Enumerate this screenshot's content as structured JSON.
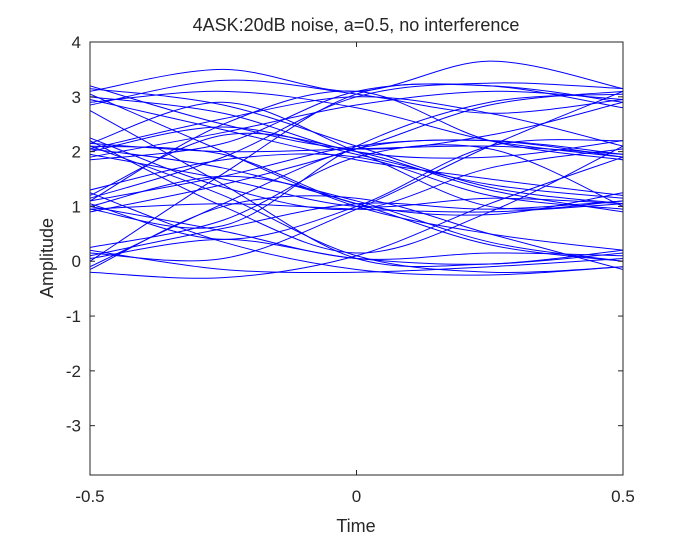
{
  "chart_data": {
    "type": "line",
    "title": "4ASK:20dB noise, a=0.5, no interference",
    "xlabel": "Time",
    "ylabel": "Amplitude",
    "xlim": [
      -0.5,
      0.5
    ],
    "ylim": [
      -3.9,
      4
    ],
    "xticks": [
      -0.5,
      0,
      0.5
    ],
    "xtick_labels": [
      "-0.5",
      "0",
      "0.5"
    ],
    "yticks": [
      -3,
      -2,
      -1,
      0,
      1,
      2,
      3,
      4
    ],
    "ytick_labels": [
      "-3",
      "-2",
      "-1",
      "0",
      "1",
      "2",
      "3",
      "4"
    ],
    "grid": false,
    "legend": "none",
    "line_color": "#0000ff",
    "x": [
      -0.5,
      -0.25,
      0,
      0.25,
      0.5
    ],
    "series": [
      {
        "values": [
          3.15,
          2.85,
          2.1,
          1.35,
          1.05
        ]
      },
      {
        "values": [
          2.9,
          3.1,
          2.8,
          2.2,
          1.9
        ]
      },
      {
        "values": [
          3.05,
          2.0,
          1.0,
          0.5,
          0.2
        ]
      },
      {
        "values": [
          2.85,
          3.3,
          3.05,
          2.7,
          2.95
        ]
      },
      {
        "values": [
          3.2,
          2.5,
          2.05,
          2.3,
          2.9
        ]
      },
      {
        "values": [
          2.75,
          1.4,
          0.05,
          -0.05,
          0.15
        ]
      },
      {
        "values": [
          3.1,
          3.5,
          3.1,
          3.65,
          3.15
        ]
      },
      {
        "values": [
          2.95,
          2.4,
          1.85,
          1.5,
          1.2
        ]
      },
      {
        "values": [
          2.05,
          2.6,
          3.0,
          2.7,
          2.1
        ]
      },
      {
        "values": [
          2.15,
          2.0,
          2.05,
          2.1,
          1.95
        ]
      },
      {
        "values": [
          1.95,
          1.5,
          1.0,
          1.15,
          1.05
        ]
      },
      {
        "values": [
          2.1,
          1.2,
          0.1,
          -0.2,
          -0.1
        ]
      },
      {
        "values": [
          1.9,
          2.35,
          2.85,
          3.1,
          2.95
        ]
      },
      {
        "values": [
          2.2,
          1.0,
          0.15,
          0.9,
          2.1
        ]
      },
      {
        "values": [
          2.0,
          2.45,
          1.95,
          1.4,
          1.15
        ]
      },
      {
        "values": [
          1.85,
          2.15,
          3.1,
          3.2,
          2.8
        ]
      },
      {
        "values": [
          2.05,
          1.7,
          1.05,
          0.3,
          0.0
        ]
      },
      {
        "values": [
          2.15,
          2.9,
          2.0,
          1.0,
          1.1
        ]
      },
      {
        "values": [
          1.1,
          1.55,
          2.1,
          2.2,
          1.9
        ]
      },
      {
        "values": [
          1.0,
          0.55,
          0.05,
          0.15,
          0.1
        ]
      },
      {
        "values": [
          1.15,
          1.9,
          3.0,
          3.25,
          3.15
        ]
      },
      {
        "values": [
          0.95,
          1.05,
          0.95,
          0.9,
          1.05
        ]
      },
      {
        "values": [
          1.2,
          2.3,
          2.0,
          1.3,
          0.9
        ]
      },
      {
        "values": [
          1.05,
          0.4,
          1.0,
          2.1,
          2.2
        ]
      },
      {
        "values": [
          0.9,
          1.4,
          2.05,
          2.85,
          3.1
        ]
      },
      {
        "values": [
          1.25,
          0.35,
          -0.15,
          -0.25,
          -0.1
        ]
      },
      {
        "values": [
          1.3,
          1.85,
          1.9,
          1.2,
          0.95
        ]
      },
      {
        "values": [
          1.0,
          1.55,
          1.1,
          0.35,
          0.0
        ]
      },
      {
        "values": [
          0.1,
          0.6,
          1.05,
          0.95,
          1.1
        ]
      },
      {
        "values": [
          -0.1,
          1.05,
          2.05,
          2.2,
          1.95
        ]
      },
      {
        "values": [
          0.2,
          -0.15,
          -0.2,
          -0.1,
          0.05
        ]
      },
      {
        "values": [
          0.0,
          1.6,
          3.05,
          3.2,
          2.9
        ]
      },
      {
        "values": [
          -0.2,
          -0.3,
          0.1,
          1.05,
          1.9
        ]
      },
      {
        "values": [
          0.25,
          0.75,
          1.9,
          2.05,
          1.0
        ]
      },
      {
        "values": [
          0.05,
          0.4,
          0.05,
          -0.05,
          0.2
        ]
      },
      {
        "values": [
          -0.15,
          1.0,
          1.15,
          0.5,
          -0.15
        ]
      },
      {
        "values": [
          0.15,
          0.05,
          0.95,
          2.1,
          3.1
        ]
      },
      {
        "values": [
          2.1,
          1.95,
          1.05,
          0.85,
          1.25
        ]
      },
      {
        "values": [
          1.1,
          2.5,
          3.1,
          2.2,
          1.85
        ]
      },
      {
        "values": [
          3.0,
          2.7,
          2.0,
          1.9,
          2.2
        ]
      },
      {
        "values": [
          2.25,
          1.35,
          0.95,
          1.7,
          2.05
        ]
      },
      {
        "values": [
          0.95,
          0.65,
          2.1,
          2.9,
          3.05
        ]
      }
    ]
  }
}
